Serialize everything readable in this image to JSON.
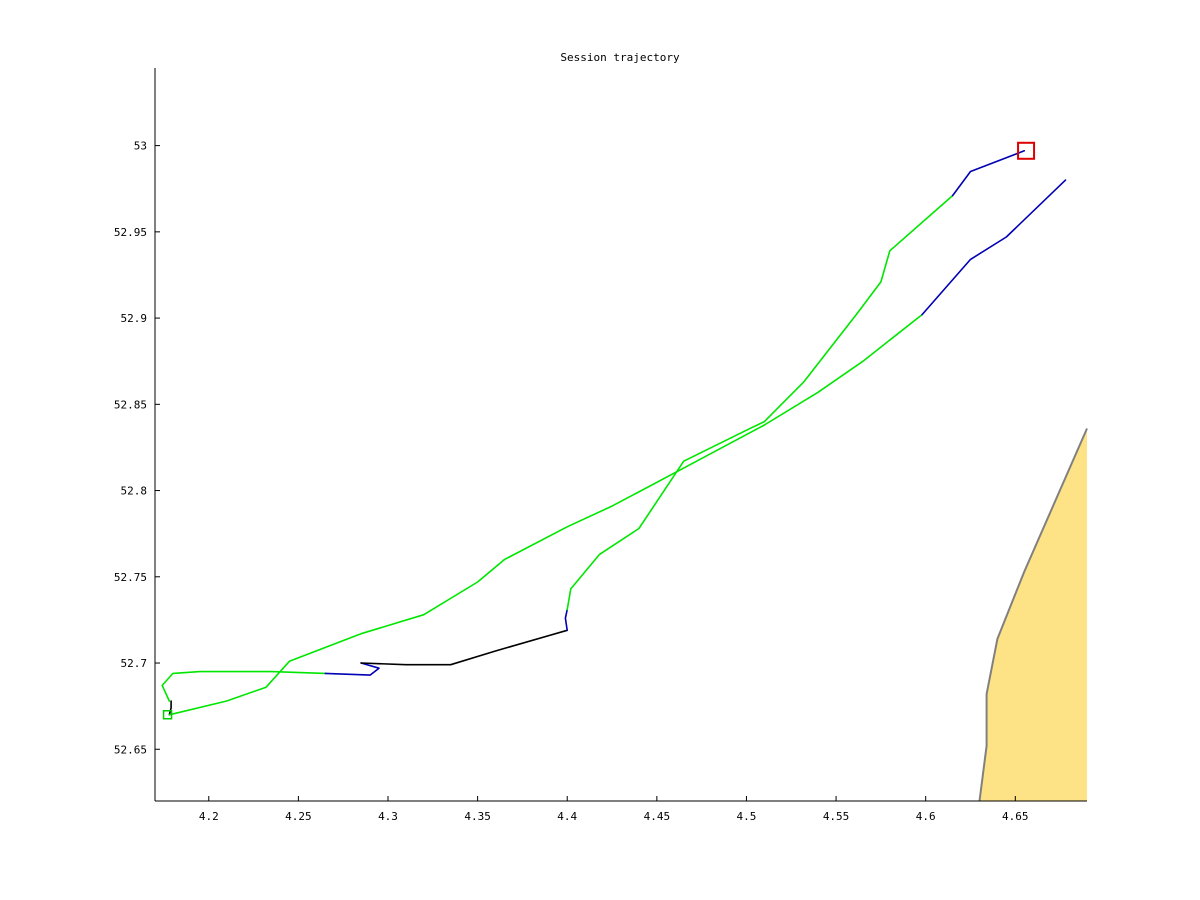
{
  "chart_data": {
    "type": "line",
    "title": "Session trajectory",
    "xlabel": "",
    "ylabel": "",
    "xlim": [
      4.17,
      4.69
    ],
    "ylim": [
      52.62,
      53.045
    ],
    "xticks": [
      4.2,
      4.25,
      4.3,
      4.35,
      4.4,
      4.45,
      4.5,
      4.55,
      4.6,
      4.65
    ],
    "xtick_labels": [
      "4.2",
      "4.25",
      "4.3",
      "4.35",
      "4.4",
      "4.45",
      "4.5",
      "4.55",
      "4.6",
      "4.65"
    ],
    "yticks": [
      52.65,
      52.7,
      52.75,
      52.8,
      52.85,
      52.9,
      52.95,
      53.0
    ],
    "ytick_labels": [
      "52.65",
      "52.7",
      "52.75",
      "52.8",
      "52.85",
      "52.9",
      "52.95",
      "53"
    ],
    "grid": false,
    "colors": {
      "green": "#00e600",
      "blue": "#0000b4",
      "black": "#000000",
      "land_fill": "#fde386",
      "land_edge": "#808080",
      "end_marker": "#dd0000",
      "start_marker": "#00cc00",
      "axis": "#000000"
    },
    "segments": [
      {
        "color": "black",
        "x": [
          4.178,
          4.179,
          4.179
        ],
        "y": [
          52.67,
          52.674,
          52.678
        ]
      },
      {
        "color": "green",
        "x": [
          4.178,
          4.174,
          4.18,
          4.195,
          4.235,
          4.265
        ],
        "y": [
          52.678,
          52.687,
          52.694,
          52.695,
          52.695,
          52.694
        ]
      },
      {
        "color": "blue",
        "x": [
          4.265,
          4.29,
          4.295,
          4.285
        ],
        "y": [
          52.694,
          52.693,
          52.697,
          52.7
        ]
      },
      {
        "color": "black",
        "x": [
          4.285,
          4.31,
          4.335,
          4.36,
          4.4
        ],
        "y": [
          52.7,
          52.699,
          52.699,
          52.707,
          52.719
        ]
      },
      {
        "color": "blue",
        "x": [
          4.4,
          4.399,
          4.4
        ],
        "y": [
          52.719,
          52.726,
          52.731
        ]
      },
      {
        "color": "green",
        "x": [
          4.4,
          4.402,
          4.418,
          4.44,
          4.465,
          4.5,
          4.51,
          4.532,
          4.562,
          4.575,
          4.58,
          4.615
        ],
        "y": [
          52.731,
          52.743,
          52.763,
          52.778,
          52.817,
          52.835,
          52.84,
          52.863,
          52.903,
          52.921,
          52.939,
          52.971
        ]
      },
      {
        "color": "blue",
        "x": [
          4.615,
          4.625,
          4.655
        ],
        "y": [
          52.971,
          52.985,
          52.997
        ]
      },
      {
        "color": "green",
        "x": [
          4.178,
          4.21,
          4.232,
          4.245,
          4.285,
          4.32,
          4.35,
          4.365,
          4.4,
          4.425,
          4.465,
          4.51,
          4.54,
          4.565,
          4.598
        ],
        "y": [
          52.67,
          52.678,
          52.686,
          52.701,
          52.717,
          52.728,
          52.747,
          52.76,
          52.779,
          52.791,
          52.813,
          52.838,
          52.857,
          52.875,
          52.902
        ]
      },
      {
        "color": "blue",
        "x": [
          4.598,
          4.625,
          4.645,
          4.678
        ],
        "y": [
          52.902,
          52.934,
          52.947,
          52.98
        ]
      }
    ],
    "land": {
      "x": [
        4.69,
        4.655,
        4.64,
        4.634,
        4.634,
        4.63,
        4.69
      ],
      "y": [
        52.836,
        52.753,
        52.714,
        52.682,
        52.652,
        52.62,
        52.62
      ]
    },
    "markers": [
      {
        "name": "end",
        "shape": "square",
        "color": "end_marker",
        "x": 4.656,
        "y": 52.997
      },
      {
        "name": "start",
        "shape": "square",
        "color": "start_marker",
        "x": 4.177,
        "y": 52.67
      }
    ]
  }
}
